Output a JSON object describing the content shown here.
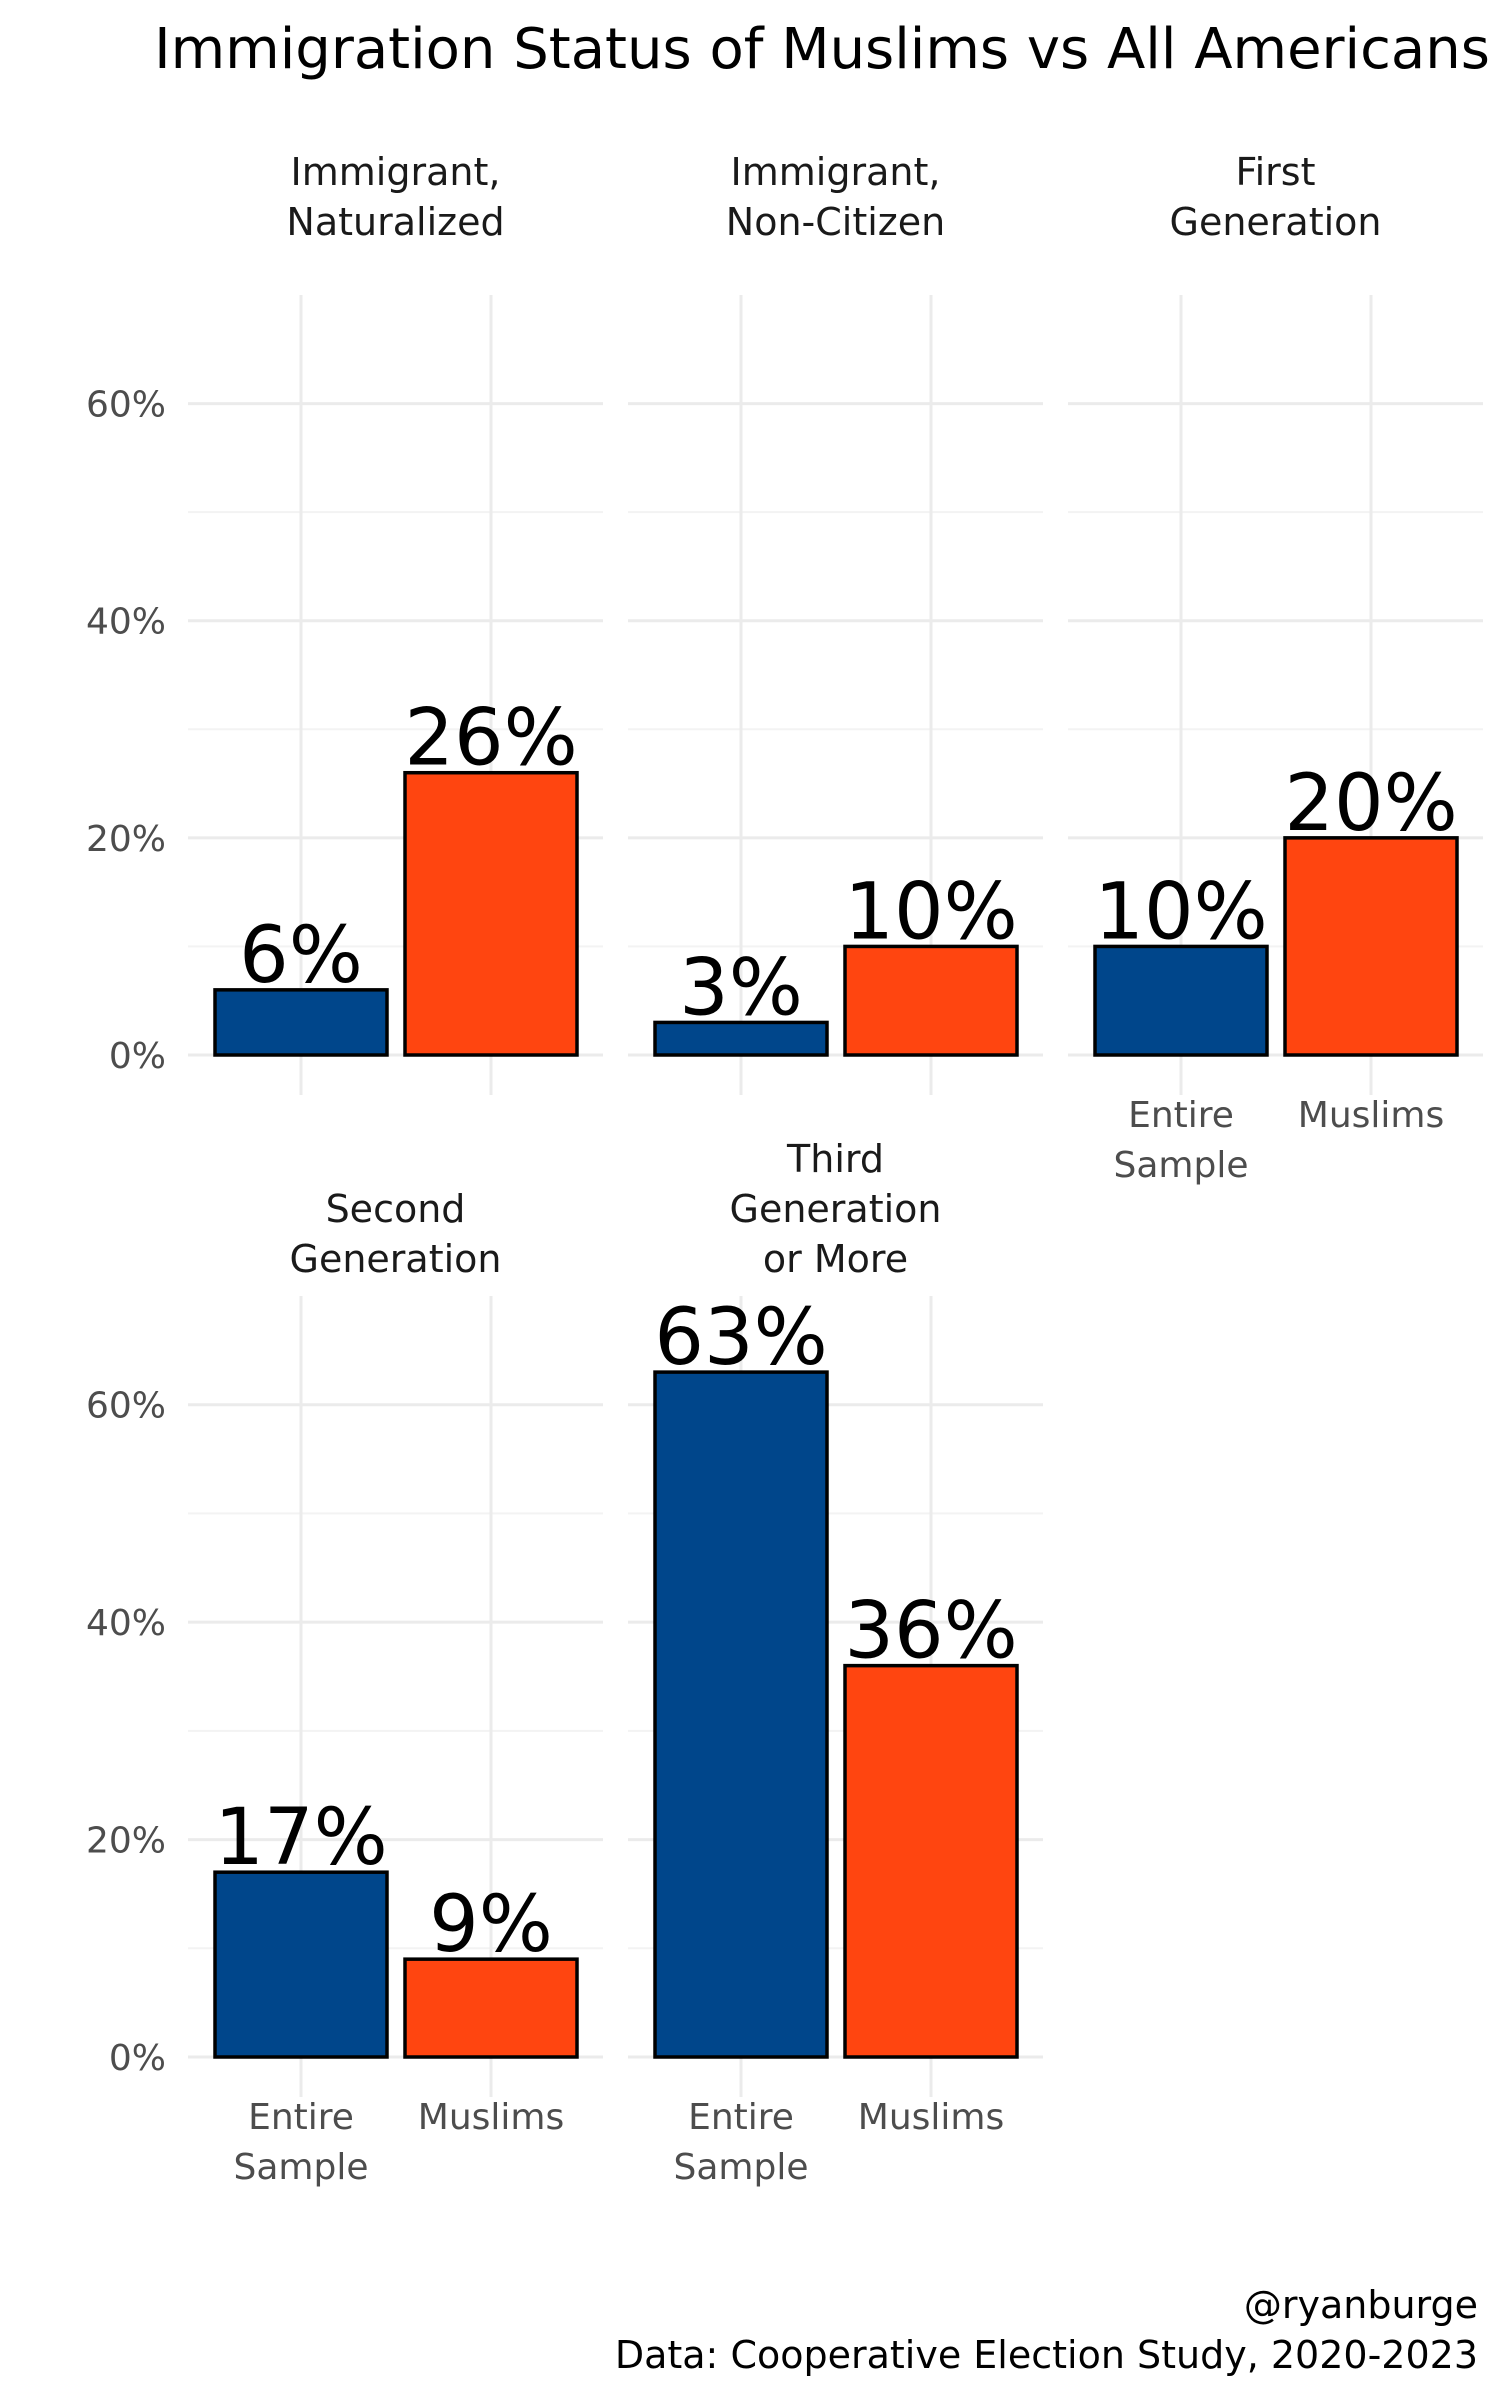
{
  "chart_data": {
    "type": "bar",
    "title": "Immigration Status of Muslims vs All Americans",
    "xlabel": "",
    "ylabel": "",
    "ylim": [
      0,
      70
    ],
    "y_ticks": [
      "0%",
      "20%",
      "40%",
      "60%"
    ],
    "y_tick_values": [
      0,
      20,
      40,
      60
    ],
    "categories": [
      "Entire Sample",
      "Muslims"
    ],
    "category_lines": [
      [
        "Entire",
        "Sample"
      ],
      [
        "Muslims"
      ]
    ],
    "colors": [
      "#00468b",
      "#ff4510"
    ],
    "grid": true,
    "facets": [
      {
        "label": "Immigrant, Naturalized",
        "label_lines": [
          "Immigrant,",
          "Naturalized"
        ],
        "values": [
          6,
          26
        ],
        "value_labels": [
          "6%",
          "26%"
        ],
        "show_x_labels": false
      },
      {
        "label": "Immigrant, Non-Citizen",
        "label_lines": [
          "Immigrant,",
          "Non-Citizen"
        ],
        "values": [
          3,
          10
        ],
        "value_labels": [
          "3%",
          "10%"
        ],
        "show_x_labels": false
      },
      {
        "label": "First Generation",
        "label_lines": [
          "First",
          "Generation"
        ],
        "values": [
          10,
          20
        ],
        "value_labels": [
          "10%",
          "20%"
        ],
        "show_x_labels": true
      },
      {
        "label": "Second Generation",
        "label_lines": [
          "Second",
          "Generation"
        ],
        "values": [
          17,
          9
        ],
        "value_labels": [
          "17%",
          "9%"
        ],
        "show_x_labels": true
      },
      {
        "label": "Third Generation or More",
        "label_lines": [
          "Third",
          "Generation",
          "or More"
        ],
        "values": [
          63,
          36
        ],
        "value_labels": [
          "63%",
          "36%"
        ],
        "show_x_labels": true
      }
    ],
    "caption_lines": [
      "@ryanburge",
      "Data: Cooperative Election Study, 2020-2023"
    ]
  }
}
